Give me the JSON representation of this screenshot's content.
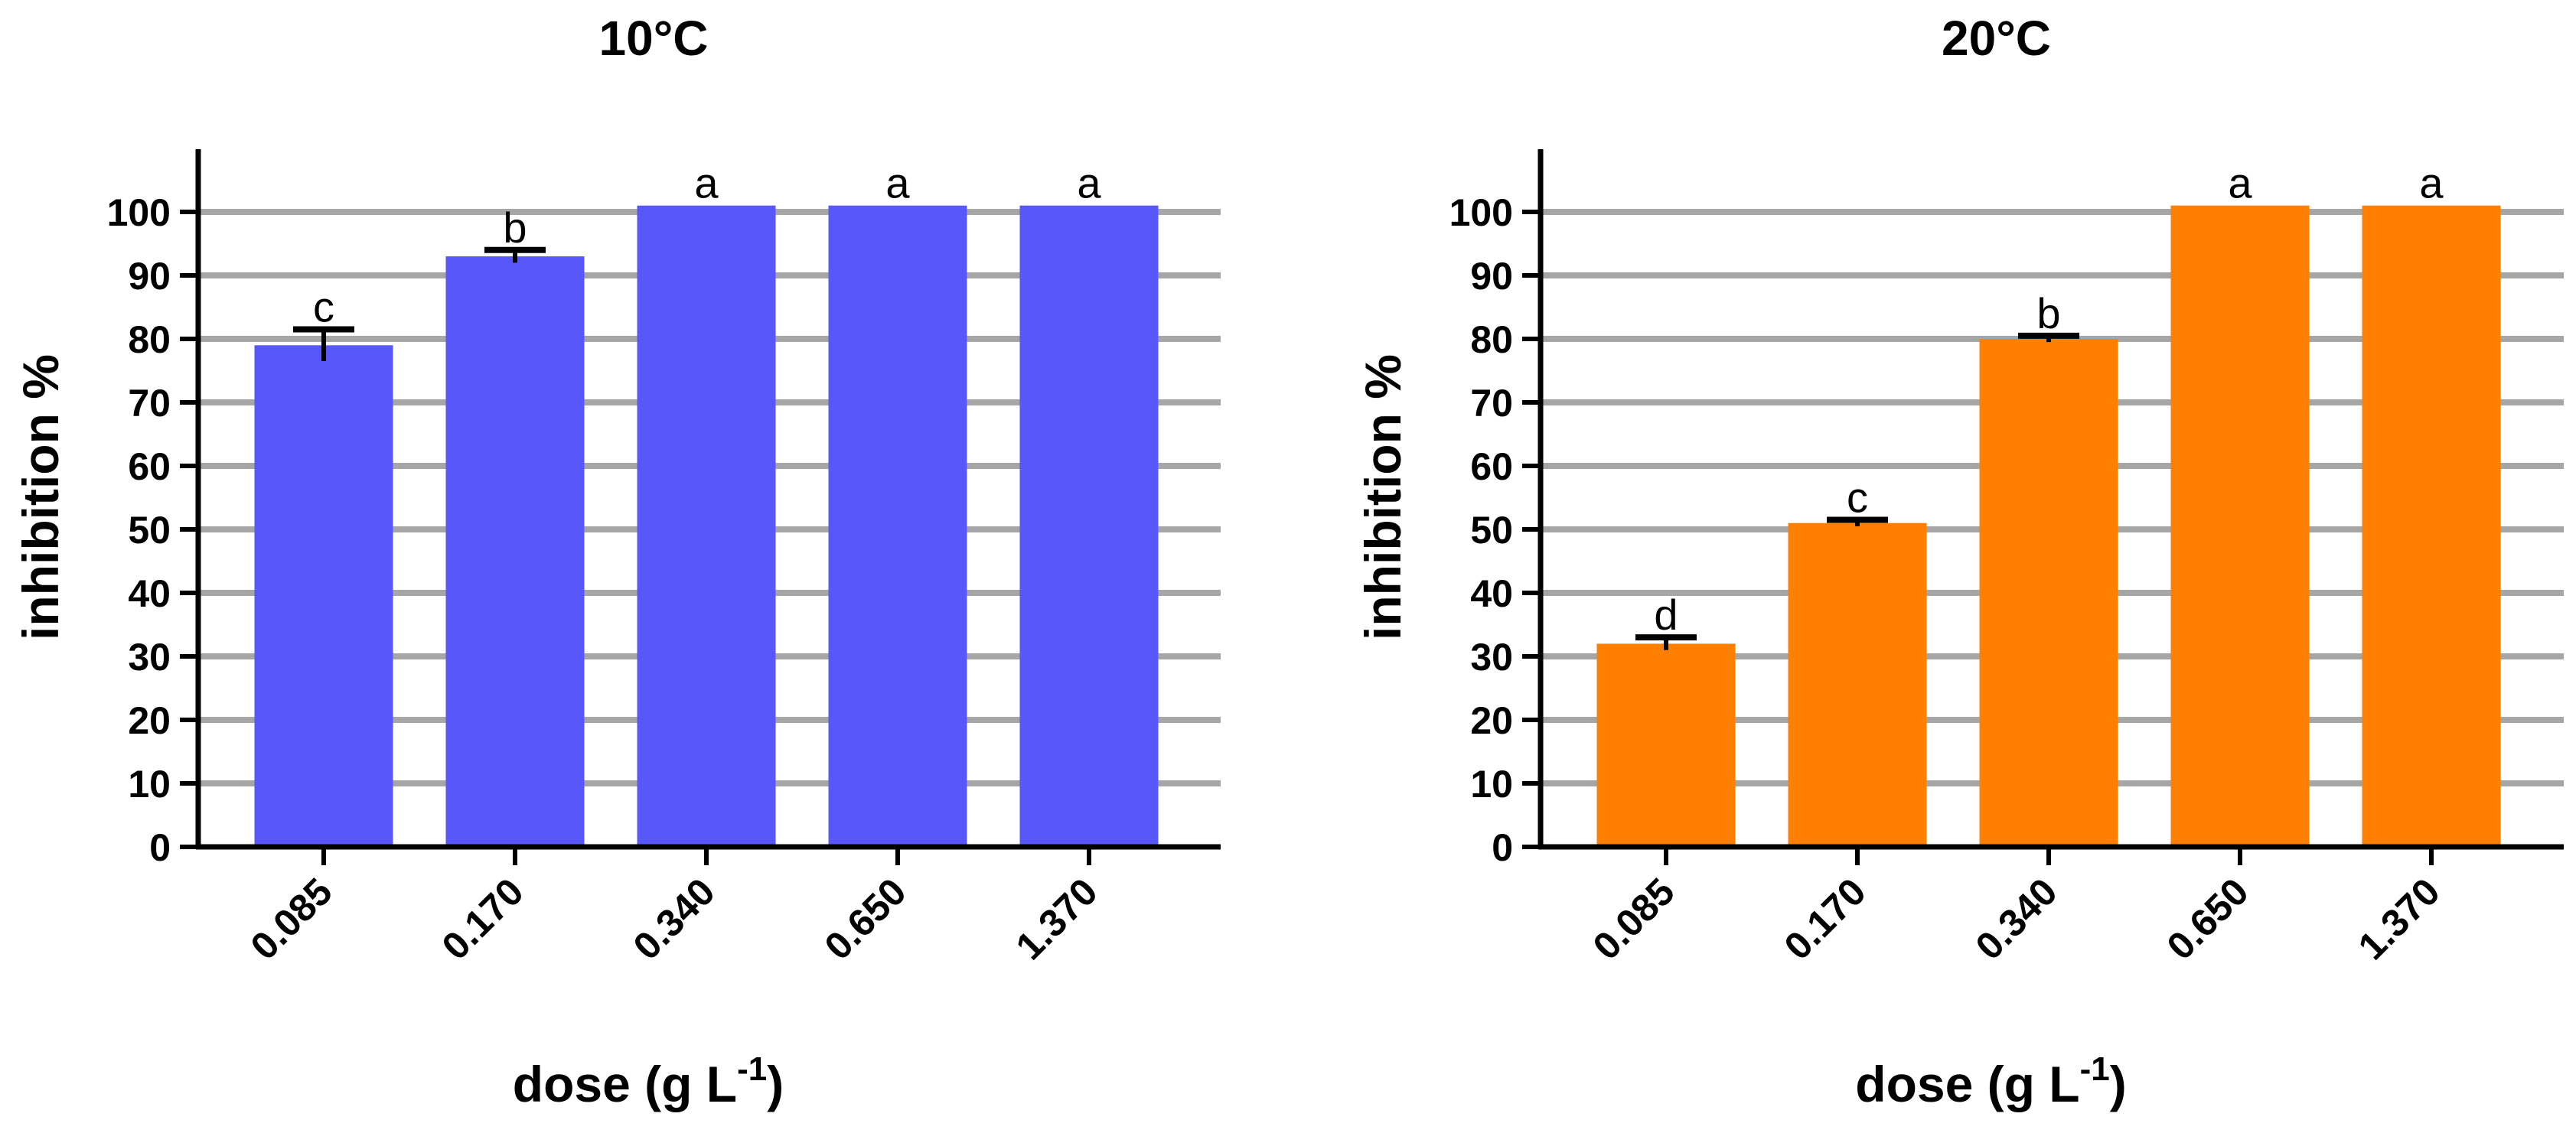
{
  "chart_data": [
    {
      "type": "bar",
      "title": "10°C",
      "xlabel": "dose (g L",
      "xlabel_sup": "-1",
      "xlabel_close": ")",
      "ylabel": "inhibition %",
      "ylim": [
        0,
        100
      ],
      "yticks": [
        "0",
        "10",
        "20",
        "30",
        "40",
        "50",
        "60",
        "70",
        "80",
        "90",
        "100"
      ],
      "grid": true,
      "categories": [
        "0.085",
        "0.170",
        "0.340",
        "0.650",
        "1.370"
      ],
      "values": [
        79,
        93,
        101,
        101,
        101
      ],
      "errors": [
        2.5,
        1,
        0,
        0,
        0
      ],
      "letters": [
        "c",
        "b",
        "a",
        "a",
        "a"
      ],
      "color": "#5858fa"
    },
    {
      "type": "bar",
      "title": "20°C",
      "xlabel": "dose (g L",
      "xlabel_sup": "-1",
      "xlabel_close": ")",
      "ylabel": "inhibition %",
      "ylim": [
        0,
        100
      ],
      "yticks": [
        "0",
        "10",
        "20",
        "30",
        "40",
        "50",
        "60",
        "70",
        "80",
        "90",
        "100"
      ],
      "grid": true,
      "categories": [
        "0.085",
        "0.170",
        "0.340",
        "0.650",
        "1.370"
      ],
      "values": [
        32,
        51,
        80,
        101,
        101
      ],
      "errors": [
        1,
        0.5,
        0.5,
        0,
        0
      ],
      "letters": [
        "d",
        "c",
        "b",
        "a",
        "a"
      ],
      "color": "#ff8000"
    }
  ]
}
